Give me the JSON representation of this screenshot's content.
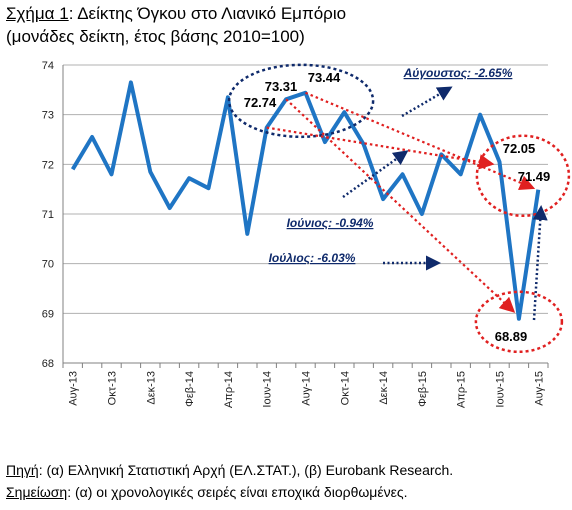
{
  "header": {
    "title_prefix": "Σχήμα 1",
    "title_rest": ": Δείκτης  Όγκου στο Λιανικό Εμπόριο",
    "subtitle": "(μονάδες δείκτη, έτος βάσης 2010=100)"
  },
  "footer": {
    "source_label": "Πηγή",
    "source_text": ": (α) Ελληνική Στατιστική Αρχή (ΕΛ.ΣΤΑΤ.), (β) Eurobank Research.",
    "note_label": "Σημείωση",
    "note_text": ": (α) οι χρονολογικές σειρές είναι εποχικά διορθωμένες."
  },
  "chart_data": {
    "type": "line",
    "title": "",
    "xlabel": "",
    "ylabel": "",
    "ylim": [
      68,
      74
    ],
    "yticks": [
      68,
      69,
      70,
      71,
      72,
      73,
      74
    ],
    "grid": "horizontal",
    "x": [
      "Αυγ-13",
      "Σεπ-13",
      "Οκτ-13",
      "Νοε-13",
      "Δεκ-13",
      "Ιαν-14",
      "Φεβ-14",
      "Μαρ-14",
      "Απρ-14",
      "Μαι-14",
      "Ιουν-14",
      "Ιουλ-14",
      "Αυγ-14",
      "Σεπ-14",
      "Οκτ-14",
      "Νοε-14",
      "Δεκ-14",
      "Ιαν-15",
      "Φεβ-15",
      "Μαρ-15",
      "Απρ-15",
      "Μαι-15",
      "Ιουν-15",
      "Ιουλ-15",
      "Αυγ-15"
    ],
    "x_tick_labels": [
      "Αυγ-13",
      "Οκτ-13",
      "Δεκ-13",
      "Φεβ-14",
      "Απρ-14",
      "Ιουν-14",
      "Αυγ-14",
      "Οκτ-14",
      "Δεκ-14",
      "Φεβ-15",
      "Απρ-15",
      "Ιουν-15",
      "Αυγ-15"
    ],
    "series": [
      {
        "color": "#1f75c4",
        "values": [
          71.9,
          72.55,
          71.8,
          73.65,
          71.85,
          71.12,
          71.72,
          71.52,
          73.35,
          70.6,
          72.74,
          73.31,
          73.44,
          72.45,
          73.05,
          72.4,
          71.3,
          71.8,
          71.0,
          72.2,
          71.8,
          73.0,
          72.05,
          68.89,
          71.49
        ]
      }
    ],
    "data_labels": [
      {
        "text": "73.31",
        "x": "Ιουλ-14"
      },
      {
        "text": "73.44",
        "x": "Αυγ-14"
      },
      {
        "text": "72.74",
        "x": "Ιουν-14"
      },
      {
        "text": "72.05",
        "x": "Ιουν-15"
      },
      {
        "text": "71.49",
        "x": "Αυγ-15"
      },
      {
        "text": "68.89",
        "x": "Ιουλ-15"
      }
    ],
    "annotations": [
      {
        "text": "Αύγουστος: -2.65%"
      },
      {
        "text": "Ιούνιος: -0.94%"
      },
      {
        "text": "Ιούλιος: -6.03%"
      }
    ],
    "colors": {
      "line": "#1f75c4",
      "ellipse_blue": "#0f2a6b",
      "ellipse_red": "#e02020",
      "annotation": "#0f2a6b"
    }
  }
}
